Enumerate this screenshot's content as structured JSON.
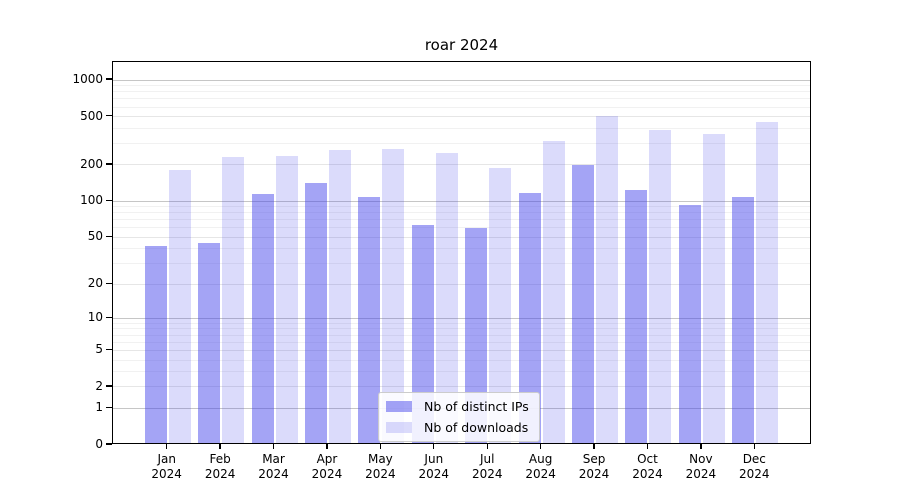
{
  "chart_data": {
    "type": "bar",
    "title": "roar 2024",
    "categories": [
      "Jan 2024",
      "Feb 2024",
      "Mar 2024",
      "Apr 2024",
      "May 2024",
      "Jun 2024",
      "Jul 2024",
      "Aug 2024",
      "Sep 2024",
      "Oct 2024",
      "Nov 2024",
      "Dec 2024"
    ],
    "series": [
      {
        "name": "Nb of distinct IPs",
        "color": "rgba(64,64,235,0.48)",
        "values": [
          42,
          45,
          116,
          141,
          108,
          64,
          60,
          117,
          199,
          123,
          94,
          108
        ]
      },
      {
        "name": "Nb of downloads",
        "color": "rgba(64,64,235,0.19)",
        "values": [
          181,
          233,
          236,
          265,
          270,
          250,
          188,
          314,
          505,
          392,
          361,
          451
        ]
      }
    ],
    "xlabel": "",
    "ylabel": "",
    "yscale": "log1p",
    "yticks": [
      0,
      1,
      2,
      5,
      10,
      20,
      50,
      100,
      200,
      500,
      1000
    ],
    "ylim": [
      0,
      1400
    ],
    "grid": "on",
    "legend_position": "lower center"
  }
}
